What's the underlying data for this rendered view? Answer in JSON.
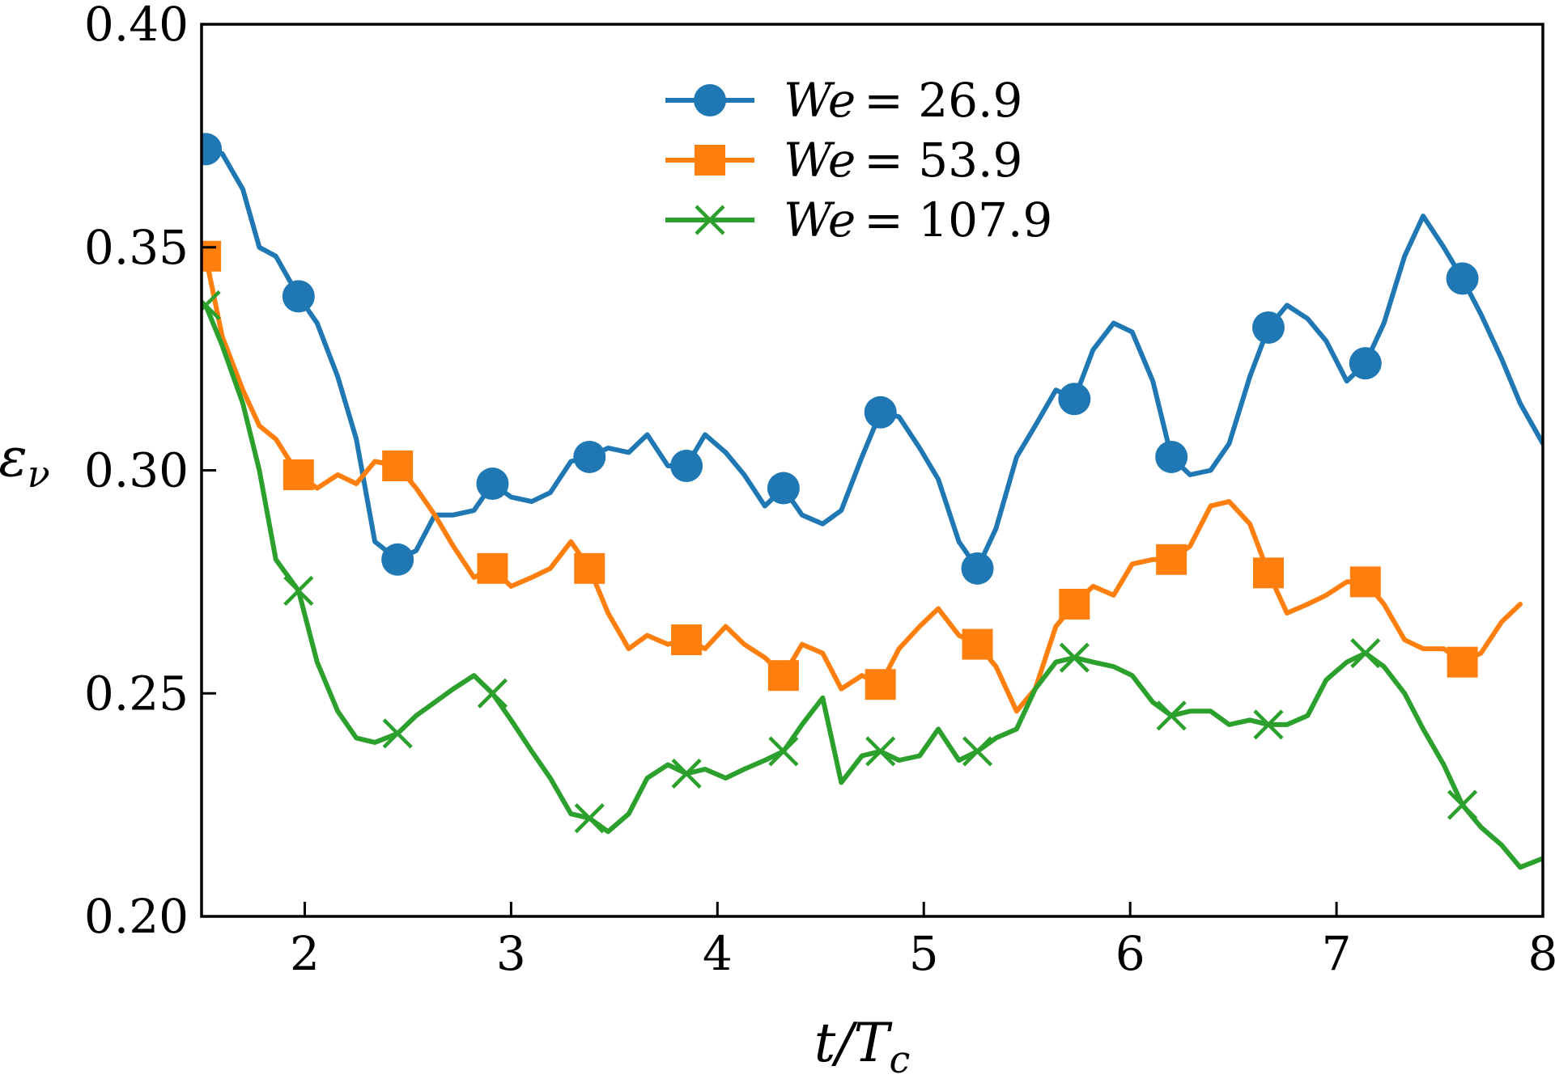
{
  "chart_data": {
    "type": "line",
    "xlabel": "t/T_c",
    "ylabel": "ε_ν",
    "xlim": [
      1.5,
      8
    ],
    "ylim": [
      0.2,
      0.4
    ],
    "xticks": [
      2,
      3,
      4,
      5,
      6,
      7,
      8
    ],
    "xtick_labels": [
      "2",
      "3",
      "4",
      "5",
      "6",
      "7",
      "8"
    ],
    "yticks": [
      0.2,
      0.25,
      0.3,
      0.35,
      0.4
    ],
    "ytick_labels": [
      "0.20",
      "0.25",
      "0.30",
      "0.35",
      "0.40"
    ],
    "grid": false,
    "legend_position": "top-center",
    "series": [
      {
        "name": "We = 26.9",
        "legend_italic": "We",
        "legend_value": "= 26.9",
        "color": "#1f77b4",
        "marker": "circle",
        "x": [
          1.52,
          1.6,
          1.7,
          1.78,
          1.86,
          1.97,
          2.06,
          2.16,
          2.25,
          2.34,
          2.45,
          2.54,
          2.63,
          2.72,
          2.82,
          2.91,
          3.0,
          3.1,
          3.19,
          3.29,
          3.38,
          3.47,
          3.57,
          3.66,
          3.76,
          3.85,
          3.94,
          4.04,
          4.13,
          4.23,
          4.32,
          4.41,
          4.51,
          4.6,
          4.7,
          4.79,
          4.88,
          4.98,
          5.07,
          5.17,
          5.26,
          5.35,
          5.45,
          5.54,
          5.64,
          5.73,
          5.82,
          5.92,
          6.01,
          6.11,
          6.2,
          6.29,
          6.39,
          6.48,
          6.58,
          6.67,
          6.76,
          6.86,
          6.95,
          7.05,
          7.14,
          7.23,
          7.33,
          7.42,
          7.52,
          7.61,
          7.7,
          7.8,
          7.89,
          8.0
        ],
        "y": [
          0.372,
          0.371,
          0.363,
          0.35,
          0.348,
          0.339,
          0.333,
          0.321,
          0.307,
          0.284,
          0.28,
          0.282,
          0.29,
          0.29,
          0.291,
          0.297,
          0.294,
          0.293,
          0.295,
          0.302,
          0.303,
          0.305,
          0.304,
          0.308,
          0.301,
          0.301,
          0.308,
          0.304,
          0.299,
          0.292,
          0.296,
          0.29,
          0.288,
          0.291,
          0.303,
          0.313,
          0.312,
          0.305,
          0.298,
          0.284,
          0.278,
          0.287,
          0.303,
          0.31,
          0.318,
          0.316,
          0.327,
          0.333,
          0.331,
          0.32,
          0.303,
          0.299,
          0.3,
          0.306,
          0.321,
          0.332,
          0.337,
          0.334,
          0.329,
          0.32,
          0.324,
          0.333,
          0.348,
          0.357,
          0.35,
          0.343,
          0.335,
          0.325,
          0.315,
          0.306
        ],
        "marker_x": [
          1.52,
          1.97,
          2.45,
          2.91,
          3.38,
          3.85,
          4.32,
          4.79,
          5.26,
          5.73,
          6.2,
          6.67,
          7.14,
          7.61
        ],
        "marker_y": [
          0.372,
          0.339,
          0.28,
          0.297,
          0.303,
          0.301,
          0.296,
          0.313,
          0.278,
          0.316,
          0.303,
          0.332,
          0.324,
          0.343
        ]
      },
      {
        "name": "We = 53.9",
        "legend_italic": "We",
        "legend_value": "= 53.9",
        "color": "#ff7f0e",
        "marker": "square",
        "x": [
          1.52,
          1.6,
          1.7,
          1.78,
          1.86,
          1.97,
          2.06,
          2.16,
          2.25,
          2.34,
          2.45,
          2.54,
          2.63,
          2.72,
          2.82,
          2.91,
          3.0,
          3.1,
          3.19,
          3.29,
          3.38,
          3.47,
          3.57,
          3.66,
          3.76,
          3.85,
          3.94,
          4.04,
          4.13,
          4.23,
          4.32,
          4.41,
          4.51,
          4.6,
          4.7,
          4.79,
          4.88,
          4.98,
          5.07,
          5.17,
          5.26,
          5.35,
          5.45,
          5.54,
          5.64,
          5.73,
          5.82,
          5.92,
          6.01,
          6.11,
          6.2,
          6.29,
          6.39,
          6.48,
          6.58,
          6.67,
          6.76,
          6.86,
          6.95,
          7.05,
          7.14,
          7.23,
          7.33,
          7.42,
          7.52,
          7.61,
          7.7,
          7.8,
          7.89
        ],
        "y": [
          0.348,
          0.33,
          0.318,
          0.31,
          0.307,
          0.299,
          0.296,
          0.299,
          0.297,
          0.302,
          0.301,
          0.296,
          0.29,
          0.283,
          0.276,
          0.278,
          0.274,
          0.276,
          0.278,
          0.284,
          0.278,
          0.268,
          0.26,
          0.263,
          0.261,
          0.262,
          0.26,
          0.265,
          0.261,
          0.258,
          0.254,
          0.261,
          0.259,
          0.251,
          0.254,
          0.252,
          0.26,
          0.265,
          0.269,
          0.263,
          0.261,
          0.256,
          0.246,
          0.251,
          0.265,
          0.27,
          0.274,
          0.272,
          0.279,
          0.28,
          0.28,
          0.283,
          0.292,
          0.293,
          0.288,
          0.277,
          0.268,
          0.27,
          0.272,
          0.275,
          0.275,
          0.27,
          0.262,
          0.26,
          0.26,
          0.257,
          0.259,
          0.266,
          0.27
        ],
        "marker_x": [
          1.52,
          1.97,
          2.45,
          2.91,
          3.38,
          3.85,
          4.32,
          4.79,
          5.26,
          5.73,
          6.2,
          6.67,
          7.14,
          7.61
        ],
        "marker_y": [
          0.348,
          0.299,
          0.301,
          0.278,
          0.278,
          0.262,
          0.254,
          0.252,
          0.261,
          0.27,
          0.28,
          0.277,
          0.275,
          0.257
        ]
      },
      {
        "name": "We = 107.9",
        "legend_italic": "We",
        "legend_value": "= 107.9",
        "color": "#2ca02c",
        "marker": "x",
        "x": [
          1.52,
          1.6,
          1.7,
          1.78,
          1.86,
          1.97,
          2.06,
          2.16,
          2.25,
          2.34,
          2.45,
          2.54,
          2.63,
          2.72,
          2.82,
          2.91,
          3.0,
          3.1,
          3.19,
          3.29,
          3.38,
          3.47,
          3.57,
          3.66,
          3.76,
          3.85,
          3.94,
          4.04,
          4.13,
          4.23,
          4.32,
          4.41,
          4.51,
          4.6,
          4.7,
          4.79,
          4.88,
          4.98,
          5.07,
          5.17,
          5.26,
          5.35,
          5.45,
          5.54,
          5.64,
          5.73,
          5.82,
          5.92,
          6.01,
          6.11,
          6.2,
          6.29,
          6.39,
          6.48,
          6.58,
          6.67,
          6.76,
          6.86,
          6.95,
          7.05,
          7.14,
          7.23,
          7.33,
          7.42,
          7.52,
          7.61,
          7.7,
          7.8,
          7.89,
          8.0
        ],
        "y": [
          0.337,
          0.328,
          0.315,
          0.3,
          0.28,
          0.273,
          0.257,
          0.246,
          0.24,
          0.239,
          0.241,
          0.245,
          0.248,
          0.251,
          0.254,
          0.25,
          0.244,
          0.237,
          0.231,
          0.223,
          0.222,
          0.219,
          0.223,
          0.231,
          0.234,
          0.232,
          0.233,
          0.231,
          0.233,
          0.235,
          0.237,
          0.243,
          0.249,
          0.23,
          0.236,
          0.237,
          0.235,
          0.236,
          0.242,
          0.235,
          0.237,
          0.24,
          0.242,
          0.251,
          0.257,
          0.258,
          0.257,
          0.256,
          0.254,
          0.248,
          0.245,
          0.246,
          0.246,
          0.243,
          0.244,
          0.243,
          0.243,
          0.245,
          0.253,
          0.257,
          0.259,
          0.256,
          0.25,
          0.242,
          0.234,
          0.225,
          0.22,
          0.216,
          0.211,
          0.213
        ],
        "marker_x": [
          1.52,
          1.97,
          2.45,
          2.91,
          3.38,
          3.85,
          4.32,
          4.79,
          5.26,
          5.73,
          6.2,
          6.67,
          7.14,
          7.61
        ],
        "marker_y": [
          0.337,
          0.273,
          0.241,
          0.25,
          0.222,
          0.232,
          0.237,
          0.237,
          0.237,
          0.258,
          0.245,
          0.243,
          0.259,
          0.225
        ]
      }
    ]
  }
}
